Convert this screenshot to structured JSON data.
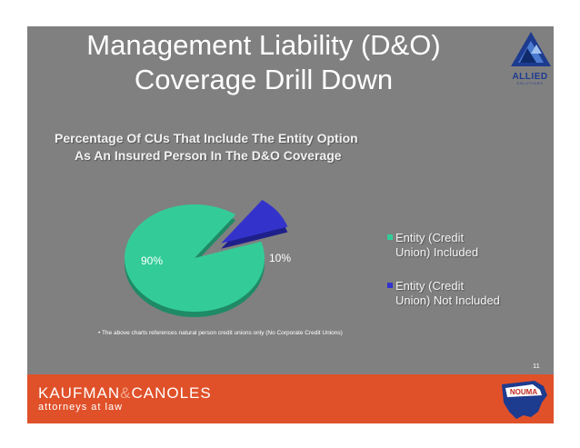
{
  "slide": {
    "title_line1": "Management Liability (D&O)",
    "title_line2": "Coverage Drill Down",
    "logo_text": "ALLIED",
    "logo_subtext": "SOLUTIONS",
    "note": "•  The above charts references natural person credit unions only (No Corporate Credit Unions)",
    "page_number": "11"
  },
  "footer": {
    "firm_part1": "KAUFMAN",
    "firm_amp": "&",
    "firm_part2": "CANOLES",
    "tagline": "attorneys at law",
    "badge_text": "NOUMA"
  },
  "colors": {
    "slide_bg": "#808080",
    "included": "#33cc99",
    "not_included": "#3333cc",
    "footer_bg": "#e0512a"
  },
  "chart_data": {
    "type": "pie",
    "title_line1": "Percentage Of CUs That Include The Entity Option",
    "title_line2": "As An Insured Person In The D&O Coverage",
    "slices": [
      {
        "label_line1": "Entity (Credit",
        "label_line2": "Union) Included",
        "value": 90,
        "value_label": "90%",
        "color": "#33cc99"
      },
      {
        "label_line1": "Entity (Credit",
        "label_line2": "Union) Not Included",
        "value": 10,
        "value_label": "10%",
        "color": "#3333cc"
      }
    ],
    "legend_position": "right"
  }
}
